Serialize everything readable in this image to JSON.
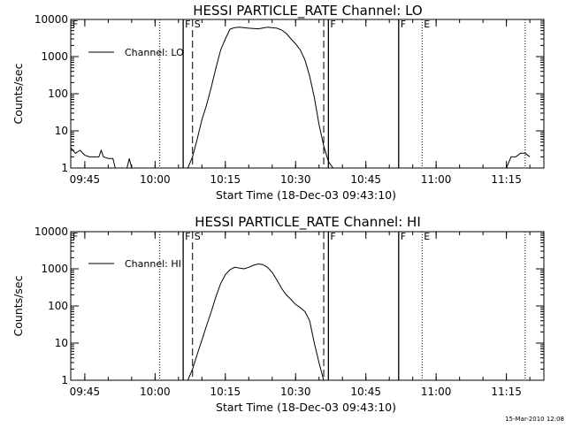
{
  "chart_data": [
    {
      "type": "line",
      "title": "HESSI PARTICLE_RATE Channel: LO",
      "xlabel": "Start Time (18-Dec-03 09:43:10)",
      "ylabel": "Counts/sec",
      "xlim": [
        "09:42",
        "11:23"
      ],
      "ylim": [
        1,
        10000
      ],
      "yscale": "log",
      "grid": false,
      "legend_position": "top-left",
      "xticks": [
        "09:45",
        "10:00",
        "10:15",
        "10:30",
        "10:45",
        "11:00",
        "11:15"
      ],
      "yticks": [
        "1",
        "10",
        "100",
        "1000",
        "10000"
      ],
      "series": [
        {
          "name": "Channel: LO",
          "points": [
            [
              "09:42",
              3.5
            ],
            [
              "09:43",
              2.5
            ],
            [
              "09:44",
              3.0
            ],
            [
              "09:45",
              2.2
            ],
            [
              "09:46",
              2.0
            ],
            [
              "09:47",
              2.0
            ],
            [
              "09:48",
              2.0
            ],
            [
              "09:48.5",
              3.0
            ],
            [
              "09:49",
              2.0
            ],
            [
              "09:50",
              1.8
            ],
            [
              "09:51",
              1.8
            ],
            [
              "09:51.5",
              1.0
            ],
            [
              "09:52",
              1.0
            ],
            [
              "09:54",
              1.0
            ],
            [
              "09:54.5",
              1.8
            ],
            [
              "09:55",
              1.0
            ],
            [
              "10:07",
              1.0
            ],
            [
              "10:08",
              2.0
            ],
            [
              "10:09",
              6.0
            ],
            [
              "10:10",
              20
            ],
            [
              "10:11",
              50
            ],
            [
              "10:12",
              150
            ],
            [
              "10:13",
              500
            ],
            [
              "10:14",
              1500
            ],
            [
              "10:15",
              3000
            ],
            [
              "10:16",
              5500
            ],
            [
              "10:17",
              6000
            ],
            [
              "10:18",
              6200
            ],
            [
              "10:20",
              5800
            ],
            [
              "10:22",
              5600
            ],
            [
              "10:24",
              6200
            ],
            [
              "10:26",
              5800
            ],
            [
              "10:27",
              5200
            ],
            [
              "10:28",
              4200
            ],
            [
              "10:29",
              3000
            ],
            [
              "10:30",
              2200
            ],
            [
              "10:31",
              1500
            ],
            [
              "10:32",
              800
            ],
            [
              "10:33",
              300
            ],
            [
              "10:34",
              80
            ],
            [
              "10:35",
              15
            ],
            [
              "10:36",
              4
            ],
            [
              "10:37",
              1.5
            ],
            [
              "10:38",
              1.0
            ],
            [
              "11:15",
              1.0
            ],
            [
              "11:16",
              2.0
            ],
            [
              "11:17",
              2.0
            ],
            [
              "11:18",
              2.5
            ],
            [
              "11:19",
              2.5
            ],
            [
              "11:20",
              2.0
            ]
          ]
        }
      ],
      "annotations": [
        {
          "label": "F",
          "x": "09:42",
          "style": "dotted"
        },
        {
          "label": "F",
          "x": "10:06",
          "style": "solid"
        },
        {
          "label": "S",
          "x": "10:08",
          "style": "dashed"
        },
        {
          "label": "",
          "x": "10:36",
          "style": "dashed"
        },
        {
          "label": "F",
          "x": "10:37",
          "style": "solid"
        },
        {
          "label": "",
          "x": "10:01",
          "style": "dotted"
        },
        {
          "label": "F",
          "x": "10:52",
          "style": "solid"
        },
        {
          "label": "E",
          "x": "10:57",
          "style": "dotted"
        },
        {
          "label": "",
          "x": "11:19",
          "style": "dotted"
        }
      ]
    },
    {
      "type": "line",
      "title": "HESSI PARTICLE_RATE Channel: HI",
      "xlabel": "Start Time (18-Dec-03 09:43:10)",
      "ylabel": "Counts/sec",
      "xlim": [
        "09:42",
        "11:23"
      ],
      "ylim": [
        1,
        10000
      ],
      "yscale": "log",
      "grid": false,
      "legend_position": "top-left",
      "xticks": [
        "09:45",
        "10:00",
        "10:15",
        "10:30",
        "10:45",
        "11:00",
        "11:15"
      ],
      "yticks": [
        "1",
        "10",
        "100",
        "1000",
        "10000"
      ],
      "series": [
        {
          "name": "Channel: HI",
          "points": [
            [
              "10:07",
              1.0
            ],
            [
              "10:08",
              2.0
            ],
            [
              "10:09",
              5.0
            ],
            [
              "10:10",
              12
            ],
            [
              "10:11",
              30
            ],
            [
              "10:12",
              70
            ],
            [
              "10:13",
              180
            ],
            [
              "10:14",
              400
            ],
            [
              "10:15",
              700
            ],
            [
              "10:16",
              950
            ],
            [
              "10:17",
              1100
            ],
            [
              "10:18",
              1050
            ],
            [
              "10:19",
              1000
            ],
            [
              "10:20",
              1100
            ],
            [
              "10:21",
              1250
            ],
            [
              "10:22",
              1350
            ],
            [
              "10:23",
              1300
            ],
            [
              "10:24",
              1100
            ],
            [
              "10:25",
              800
            ],
            [
              "10:26",
              500
            ],
            [
              "10:27",
              300
            ],
            [
              "10:28",
              200
            ],
            [
              "10:29",
              150
            ],
            [
              "10:30",
              110
            ],
            [
              "10:31",
              90
            ],
            [
              "10:32",
              70
            ],
            [
              "10:33",
              40
            ],
            [
              "10:34",
              10
            ],
            [
              "10:35",
              3
            ],
            [
              "10:36",
              1.0
            ]
          ]
        }
      ],
      "annotations": [
        {
          "label": "F",
          "x": "09:42",
          "style": "dotted"
        },
        {
          "label": "F",
          "x": "10:06",
          "style": "solid"
        },
        {
          "label": "S",
          "x": "10:08",
          "style": "dashed"
        },
        {
          "label": "",
          "x": "10:36",
          "style": "dashed"
        },
        {
          "label": "F",
          "x": "10:37",
          "style": "solid"
        },
        {
          "label": "",
          "x": "10:01",
          "style": "dotted"
        },
        {
          "label": "F",
          "x": "10:52",
          "style": "solid"
        },
        {
          "label": "E",
          "x": "10:57",
          "style": "dotted"
        },
        {
          "label": "",
          "x": "11:19",
          "style": "dotted"
        }
      ]
    }
  ],
  "footer": {
    "timestamp": "15-Mar-2010 12:08"
  }
}
